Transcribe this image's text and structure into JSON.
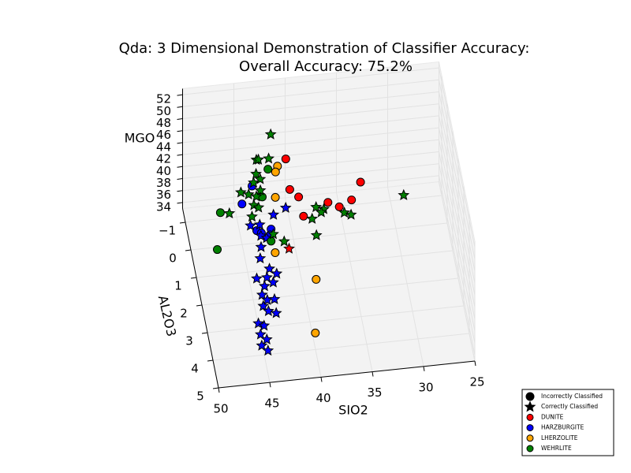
{
  "chart_data": {
    "type": "scatter3d",
    "title": "Qda: 3 Dimensional Demonstration of Classifier Accuracy:",
    "subtitle": "Overall Accuracy: 75.2%",
    "x_label": "SIO2",
    "y_label": "AL2O3",
    "z_label": "MGO",
    "xlim": [
      25,
      50
    ],
    "xticks": [
      25,
      30,
      35,
      40,
      45,
      50
    ],
    "ylim": [
      -1.5,
      5
    ],
    "yticks": [
      {
        "value": -1,
        "label": "−1"
      },
      0,
      1,
      2,
      3,
      4,
      5
    ],
    "zlim": [
      33,
      53
    ],
    "zticks": [
      34,
      36,
      38,
      40,
      42,
      44,
      46,
      48,
      50,
      52
    ],
    "grid": true,
    "legend": "lower right",
    "markers": [
      {
        "name": "Incorrectly Classified",
        "shape": "circle"
      },
      {
        "name": "Correctly Classified",
        "shape": "star"
      }
    ],
    "series": [
      {
        "name": "DUNITE",
        "color": "#ff0000",
        "circle": {
          "x": [
            40.8,
            41.0,
            40.3,
            40.2,
            37.6,
            36.6,
            35.3,
            34.1
          ],
          "y": [
            0.1,
            1.2,
            1.5,
            2.2,
            1.8,
            2.0,
            1.8,
            1.2
          ],
          "z": [
            47,
            47,
            47,
            47,
            47,
            47,
            47,
            47
          ]
        },
        "star": {
          "x": [
            42.2
          ],
          "y": [
            3.3
          ],
          "z": [
            47
          ]
        }
      },
      {
        "name": "HARZBURGITE",
        "color": "#0000ff",
        "circle": {
          "x": [
            44.2,
            45.5,
            44.6,
            43.2,
            44.2,
            43.4
          ],
          "y": [
            0.3,
            0.9,
            1.9,
            1.9,
            2.0,
            2.1
          ],
          "z": [
            44,
            44,
            44,
            44,
            44,
            44
          ]
        },
        "star": {
          "x": [
            42.7,
            41.4,
            44.2,
            45.1,
            44.3,
            43.8,
            44.5,
            44.8,
            43.2,
            42.6,
            43.6,
            44.6,
            43.1,
            44.0,
            44.4,
            44.0,
            43.3,
            44.5,
            44.1,
            43.4,
            45.3,
            44.8,
            45.3,
            44.8,
            45.4,
            44.9
          ],
          "y": [
            1.4,
            1.2,
            1.7,
            1.7,
            2.1,
            2.2,
            2.5,
            2.9,
            1.6,
            1.8,
            1.9,
            1.9,
            2.1,
            2.2,
            2.5,
            2.7,
            2.7,
            2.9,
            3.1,
            3.2,
            3.5,
            3.6,
            3.9,
            4.1,
            4.3,
            4.5
          ],
          "z": [
            44,
            44,
            44,
            44,
            44,
            44,
            44,
            44,
            36,
            36,
            36,
            36,
            36,
            36,
            36,
            36,
            36,
            36,
            36,
            36,
            36,
            36,
            36,
            36,
            36,
            36
          ]
        }
      },
      {
        "name": "LHERZOLITE",
        "color": "#ffa500",
        "circle": {
          "x": [
            41.5,
            41.8,
            42.3,
            42.8,
            39.4,
            40.5
          ],
          "y": [
            -0.1,
            0.1,
            1.0,
            1.9,
            3.0,
            4.9
          ],
          "z": [
            45,
            45,
            45,
            40,
            40,
            40
          ]
        },
        "star": {
          "x": [],
          "y": [],
          "z": []
        }
      },
      {
        "name": "WEHRLITE",
        "color": "#008000",
        "circle": {
          "x": [
            42.7,
            43.2,
            47.5,
            48.5,
            43.2
          ],
          "y": [
            0.4,
            0.3,
            0.7,
            2.0,
            1.9
          ],
          "z": [
            47,
            42,
            42,
            42,
            42
          ]
        },
        "star": {
          "x": [
            42.0,
            43.4,
            42.2,
            43.2,
            43.7,
            43.4,
            44.1,
            43.6,
            45.5,
            44.8,
            44.1,
            44.5,
            44.1,
            47.0,
            44.9,
            38.6,
            37.9,
            39.2,
            38.2,
            36.0,
            35.4,
            30.0,
            39.1,
            42.3,
            43.2
          ],
          "y": [
            -0.4,
            -0.4,
            -0.4,
            -0.4,
            0.1,
            0.3,
            0.4,
            0.7,
            0.7,
            0.8,
            0.9,
            1.2,
            1.3,
            1.4,
            1.6,
            1.5,
            1.6,
            1.9,
            1.7,
            1.8,
            1.9,
            1.4,
            2.5,
            2.6,
            2.3
          ],
          "z": [
            49,
            45,
            45,
            45,
            45,
            45,
            45,
            45,
            45,
            45,
            45,
            45,
            45,
            45,
            45,
            45,
            45,
            45,
            45,
            45,
            45,
            45,
            45,
            45,
            45
          ]
        }
      }
    ]
  }
}
